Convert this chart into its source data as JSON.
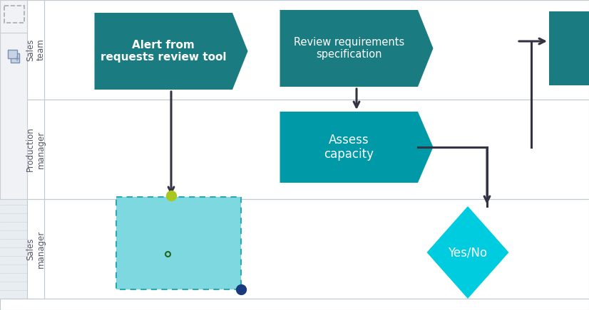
{
  "bg_color": "#e8edf2",
  "grid_color": "#d0d8e0",
  "lane_bg": "#ffffff",
  "lane_border": "#c0c8d0",
  "lane_label_color": "#555566",
  "lanes": [
    "Sales\nteam",
    "Production\nmanager",
    "Sales\nmanager"
  ],
  "toolbar_bg": "#f0f2f5",
  "toolbar_border": "#c8cdd4",
  "shape1_color": "#1a7c80",
  "shape2_color": "#1a7c80",
  "shape3_color": "#0099a8",
  "rect_color": "#7dd8e0",
  "rect_border_color": "#2aa8b8",
  "diamond_color": "#00cce0",
  "partial_color": "#1a7c80",
  "arrow_color": "#333344",
  "dot_yellow": "#a8c820",
  "dot_blue": "#1a3a80",
  "dot_green": "#226622",
  "text_white": "#ffffff",
  "icon_fill": "#c8d4e4",
  "icon_border": "#7a90b0"
}
